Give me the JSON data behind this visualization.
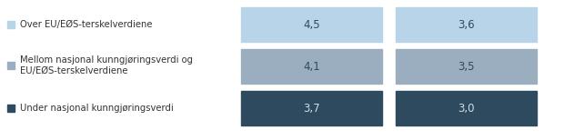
{
  "legend_labels": [
    "Over EU/EØS-terskelverdiene",
    "Mellom nasjonal kunngjøringsverdi og\nEU/EØS-terskelverdiene",
    "Under nasjonal kunngjøringsverdi"
  ],
  "labels_col1": [
    "4,5",
    "4,1",
    "3,7"
  ],
  "labels_col2": [
    "3,6",
    "3,5",
    "3,0"
  ],
  "bar_colors": [
    "#b8d4e8",
    "#9baec0",
    "#2e4a5e"
  ],
  "text_colors": [
    "#2e4a5e",
    "#2e4a5e",
    "#d0dde6"
  ],
  "background_color": "#ffffff",
  "legend_color_text": "#333333",
  "legend_font_size": 7.2,
  "bar_font_size": 8.5
}
